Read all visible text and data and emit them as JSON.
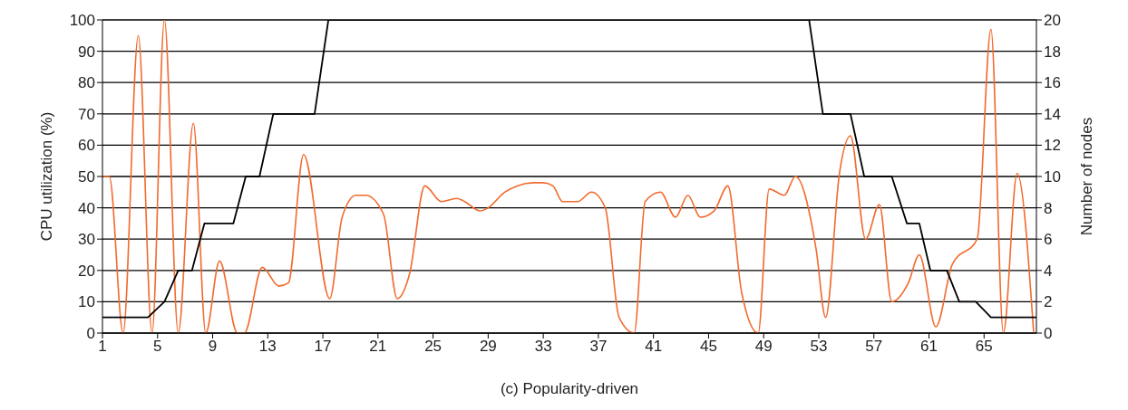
{
  "chart_data": {
    "type": "line",
    "xlabel": "(c) Popularity-driven",
    "ylabel": "CPU utilization (%)",
    "y2label": "Number of nodes",
    "xlim": [
      1,
      68.8
    ],
    "xticks": [
      1,
      5,
      9,
      13,
      17,
      21,
      25,
      29,
      33,
      37,
      41,
      45,
      49,
      53,
      57,
      61,
      65
    ],
    "ylim": [
      0,
      100
    ],
    "yticks": [
      0,
      10,
      20,
      30,
      40,
      50,
      60,
      70,
      80,
      90,
      100
    ],
    "y2lim": [
      0,
      20
    ],
    "y2ticks": [
      0,
      2,
      4,
      6,
      8,
      10,
      12,
      14,
      16,
      18,
      20
    ],
    "grid": "y",
    "legend": false,
    "marker": "none",
    "series": [
      {
        "color": "#f26a2e",
        "x": [
          1,
          1.5,
          2.5,
          3.6,
          4.6,
          5.5,
          6.5,
          7.6,
          8.5,
          9.5,
          10.8,
          11.3,
          12.6,
          13.8,
          14.5,
          15.6,
          17.5,
          18.4,
          19.4,
          20.1,
          21.4,
          22.4,
          23.3,
          24.4,
          25.6,
          26.7,
          27.3,
          28.4,
          29,
          30.2,
          31.1,
          32.3,
          33,
          33.7,
          34.4,
          35.5,
          36.5,
          37.5,
          38.5,
          39.6,
          40.4,
          41.5,
          42.6,
          43.5,
          44.4,
          45.4,
          46.4,
          47.4,
          48.6,
          49.4,
          50.5,
          51.3,
          52.8,
          53.5,
          54.5,
          55.3,
          56.4,
          57.4,
          58.3,
          59.5,
          60.3,
          61.5,
          62.7,
          64.5,
          65.5,
          66.4,
          67.4,
          68.6
        ],
        "values": [
          50,
          50,
          0,
          95,
          0,
          100,
          0,
          67,
          0,
          23,
          0,
          0,
          21,
          15,
          16,
          57,
          11,
          37,
          44,
          44,
          38,
          11,
          19,
          47,
          42,
          43,
          42,
          39,
          40,
          45,
          47,
          48,
          48,
          47,
          42,
          42,
          45,
          40,
          5,
          0,
          42,
          45,
          37,
          44,
          37,
          39,
          47,
          13,
          0,
          46,
          44,
          50,
          27,
          5,
          51,
          63,
          30,
          41,
          10,
          16,
          25,
          2,
          22,
          30,
          97,
          0,
          51,
          0
        ]
      },
      {
        "color": "#000000",
        "axis": "y2",
        "x": [
          1,
          4.3,
          5.5,
          6.5,
          7.5,
          8.4,
          10.5,
          11.4,
          12.4,
          13.4,
          16.4,
          17.4,
          52.3,
          53.3,
          55.3,
          56.3,
          58.3,
          59.4,
          60.3,
          61.1,
          62.3,
          63.2,
          64.4,
          65.5,
          68.8
        ],
        "values": [
          1,
          1,
          2,
          4,
          4,
          7,
          7,
          10,
          10,
          14,
          14,
          20,
          20,
          14,
          14,
          10,
          10,
          7,
          7,
          4,
          4,
          2,
          2,
          1,
          1
        ]
      }
    ]
  }
}
